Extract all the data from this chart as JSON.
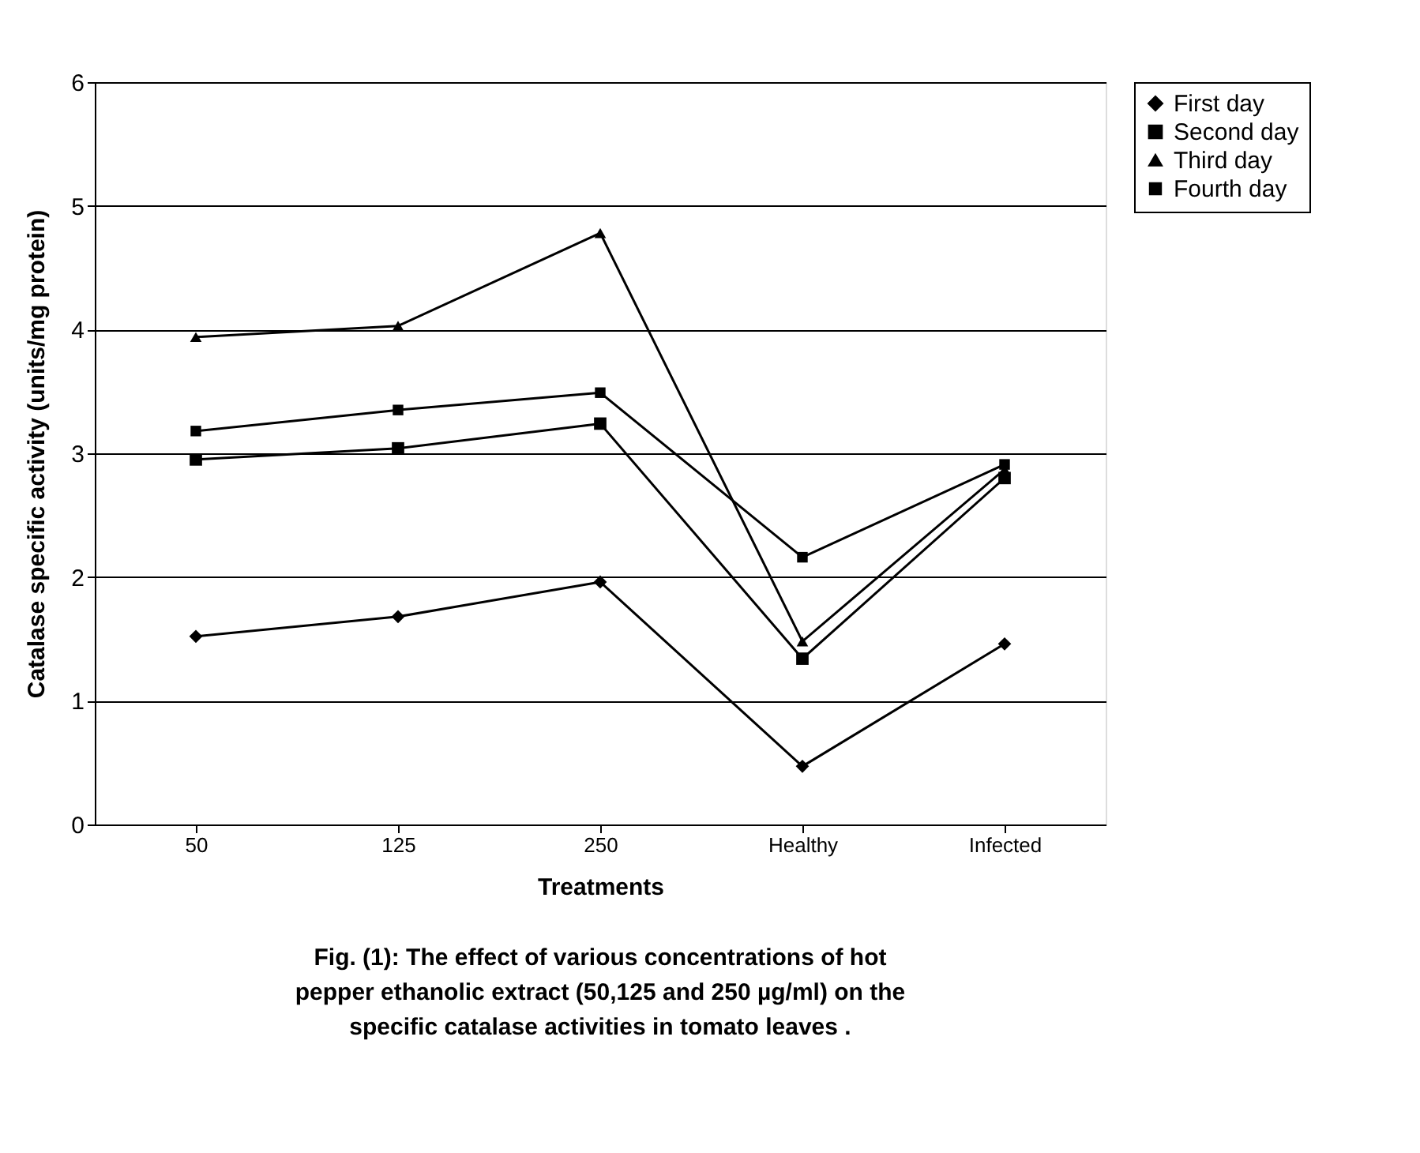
{
  "chart_data": {
    "type": "line",
    "xlabel": "Treatments",
    "ylabel": "Catalase specific activity (units/mg protein)",
    "categories": [
      "50",
      "125",
      "250",
      "Healthy",
      "Infected"
    ],
    "series": [
      {
        "name": "First day",
        "color": "#000000",
        "marker": "diamond",
        "values": [
          1.52,
          1.68,
          1.96,
          0.47,
          1.46
        ]
      },
      {
        "name": "Second day",
        "color": "#000000",
        "marker": "square",
        "values": [
          2.95,
          3.04,
          3.24,
          1.34,
          2.8
        ]
      },
      {
        "name": "Third day",
        "color": "#000000",
        "marker": "triangle",
        "values": [
          3.94,
          4.03,
          4.78,
          1.48,
          2.87
        ]
      },
      {
        "name": "Fourth day",
        "color": "#000000",
        "marker": "square",
        "values": [
          3.18,
          3.35,
          3.49,
          2.16,
          2.91
        ]
      }
    ],
    "ylim": [
      0,
      6
    ],
    "yticks": [
      0,
      1,
      2,
      3,
      4,
      5,
      6
    ],
    "grid": "y",
    "legend": "right",
    "line_style": "solid",
    "annotations": [
      "Fig. (1): The effect of various concentrations of hot pepper ethanolic extract  (50,125 and  250 µg/ml) on the specific catalase activities in tomato leaves   ."
    ]
  }
}
